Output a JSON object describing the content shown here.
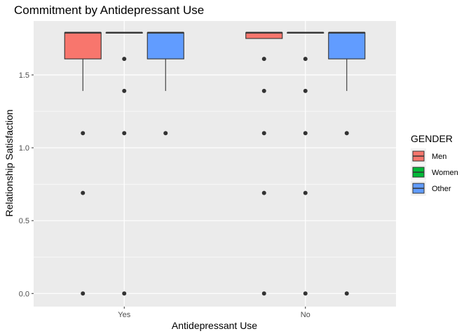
{
  "chart_data": {
    "type": "boxplot",
    "title": "Commitment by Antidepressant Use",
    "xlabel": "Antidepressant Use",
    "ylabel": "Relationship Satisfaction",
    "categories": [
      "Yes",
      "No"
    ],
    "y_ticks": [
      0.0,
      0.5,
      1.0,
      1.5
    ],
    "y_tick_labels": [
      "0.0",
      "0.5",
      "1.0",
      "1.5"
    ],
    "ylim": [
      -0.09,
      1.87
    ],
    "grid": true,
    "legend": {
      "title": "GENDER",
      "placement": "right",
      "entries": [
        "Men",
        "Women",
        "Other"
      ]
    },
    "colors": {
      "Men": "#F8766D",
      "Women": "#00BA38",
      "Other": "#619CFF",
      "panel": "#EBEBEB",
      "grid": "#FFFFFF",
      "outline": "#333333"
    },
    "series": [
      {
        "name": "Men",
        "boxes": [
          {
            "category": "Yes",
            "q1": 1.61,
            "median": 1.79,
            "q3": 1.79,
            "whisker_low": 1.39,
            "whisker_high": 1.79,
            "outliers": [
              1.1,
              0.69,
              0.0
            ]
          },
          {
            "category": "No",
            "q1": 1.75,
            "median": 1.79,
            "q3": 1.79,
            "whisker_low": 1.75,
            "whisker_high": 1.79,
            "outliers": [
              1.61,
              1.39,
              1.1,
              0.69,
              0.0
            ]
          }
        ]
      },
      {
        "name": "Women",
        "boxes": [
          {
            "category": "Yes",
            "q1": 1.79,
            "median": 1.79,
            "q3": 1.79,
            "whisker_low": 1.79,
            "whisker_high": 1.79,
            "outliers": [
              1.61,
              1.39,
              1.1,
              0.0
            ]
          },
          {
            "category": "No",
            "q1": 1.79,
            "median": 1.79,
            "q3": 1.79,
            "whisker_low": 1.79,
            "whisker_high": 1.79,
            "outliers": [
              1.61,
              1.39,
              1.1,
              0.69,
              0.0
            ]
          }
        ]
      },
      {
        "name": "Other",
        "boxes": [
          {
            "category": "Yes",
            "q1": 1.61,
            "median": 1.79,
            "q3": 1.79,
            "whisker_low": 1.39,
            "whisker_high": 1.79,
            "outliers": [
              1.1
            ]
          },
          {
            "category": "No",
            "q1": 1.61,
            "median": 1.79,
            "q3": 1.79,
            "whisker_low": 1.39,
            "whisker_high": 1.79,
            "outliers": [
              1.1,
              0.0
            ]
          }
        ]
      }
    ]
  }
}
